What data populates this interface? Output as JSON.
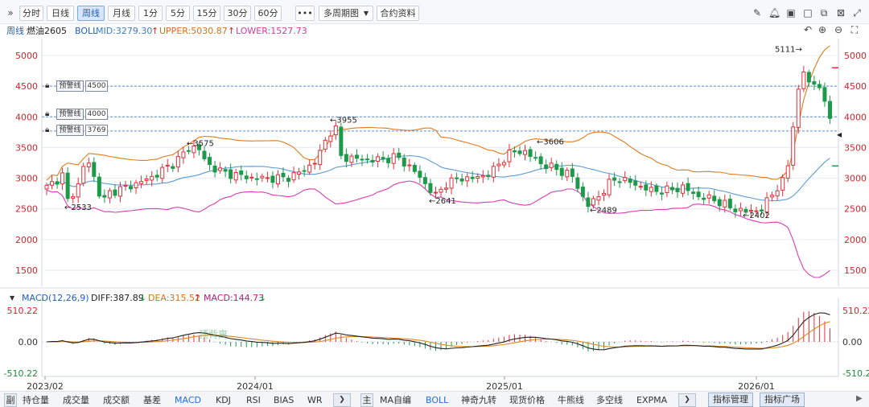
{
  "toolbar": {
    "collapse_glyph": "»",
    "periods": [
      "分时",
      "日线",
      "周线",
      "月线",
      "1分",
      "5分",
      "15分",
      "30分",
      "60分"
    ],
    "active_period": "周线",
    "more_label": "•••",
    "multi_period_label": "多周期图",
    "contract_label": "合约资料",
    "right_icons": [
      "draw-icon",
      "alert-bell-icon",
      "screenshot-icon",
      "window-icon",
      "restore-icon",
      "close-icon"
    ]
  },
  "info": {
    "period": "周线",
    "symbol": "燃油2605",
    "boll_label": "BOLL",
    "mid": "MID:3279.30",
    "upper": "UPPER:5030.87",
    "lower": "LOWER:1527.73",
    "zoom_icons": [
      "reset-icon",
      "zoom-in-icon",
      "zoom-out-icon",
      "fullscreen-icon"
    ]
  },
  "colors": {
    "up": "#e0303a",
    "down": "#1c9a4a",
    "mid": "#5b9bd5",
    "upper": "#e07b1f",
    "lower": "#d83cb3",
    "diff": "#222222",
    "dea": "#e08a1f",
    "grid": "#e8ecf1",
    "axis_text": "#c8282c",
    "macd_axis_text": "#1c8a3a",
    "alert_line": "#5b8ed6"
  },
  "price_axis": {
    "ticks": [
      "5000",
      "4500",
      "4000",
      "3500",
      "3000",
      "2500",
      "2000",
      "1500"
    ],
    "min": 1200,
    "max": 5400
  },
  "alerts": [
    {
      "label": "预警线",
      "value": "4500"
    },
    {
      "label": "预警线",
      "value": "4000"
    },
    {
      "label": "预警线",
      "value": "3769"
    }
  ],
  "annotations": [
    {
      "text": "←2533",
      "price": 2533
    },
    {
      "text": "←3575",
      "price": 3575
    },
    {
      "text": "←3955",
      "price": 3955
    },
    {
      "text": "←2641",
      "price": 2641
    },
    {
      "text": "←3606",
      "price": 3606
    },
    {
      "text": "←2489",
      "price": 2489
    },
    {
      "text": "←2402",
      "price": 2402
    },
    {
      "text": "5111→",
      "price": 5111
    }
  ],
  "macd": {
    "header_caret": "▼",
    "title": "MACD(12,26,9)",
    "diff": "DIFF:387.89",
    "dea": "DEA:315.52",
    "macd": "MACD:144.73",
    "diff_arrow": "↓",
    "dea_arrow": "↑",
    "macd_arrow": "↓",
    "axis_ticks": [
      "510.22",
      "0.00",
      "-510.22"
    ],
    "watermark": "顶背离"
  },
  "time_axis": [
    "2023/02",
    "2024/01",
    "2025/01",
    "2026/01"
  ],
  "chart_data": {
    "type": "candlestick",
    "title": "燃油2605",
    "period": "周线",
    "ylim": [
      1200,
      5400
    ],
    "key_points": [
      {
        "label": "2533",
        "value": 2533
      },
      {
        "label": "3575",
        "value": 3575
      },
      {
        "label": "3955",
        "value": 3955
      },
      {
        "label": "2641",
        "value": 2641
      },
      {
        "label": "3606",
        "value": 3606
      },
      {
        "label": "2489",
        "value": 2489
      },
      {
        "label": "2402",
        "value": 2402
      },
      {
        "label": "5111",
        "value": 5111
      }
    ],
    "boll_latest": {
      "mid": 3279.3,
      "upper": 5030.87,
      "lower": 1527.73
    },
    "macd_latest": {
      "diff": 387.89,
      "dea": 315.52,
      "macd": 144.73
    }
  },
  "bottom_tabs": {
    "side_label": "副",
    "left": [
      "持仓量",
      "成交量",
      "成交额",
      "基差",
      "MACD",
      "KDJ",
      "RSI",
      "BIAS",
      "WR"
    ],
    "left_active": "MACD",
    "next_glyph": "❯",
    "main_side": "主",
    "right": [
      "MA自编",
      "BOLL",
      "神奇九转",
      "现货价格",
      "牛熊线",
      "多空线",
      "EXPMA"
    ],
    "right_active": "BOLL",
    "manage_label": "指标管理",
    "square_label": "指标广场"
  }
}
